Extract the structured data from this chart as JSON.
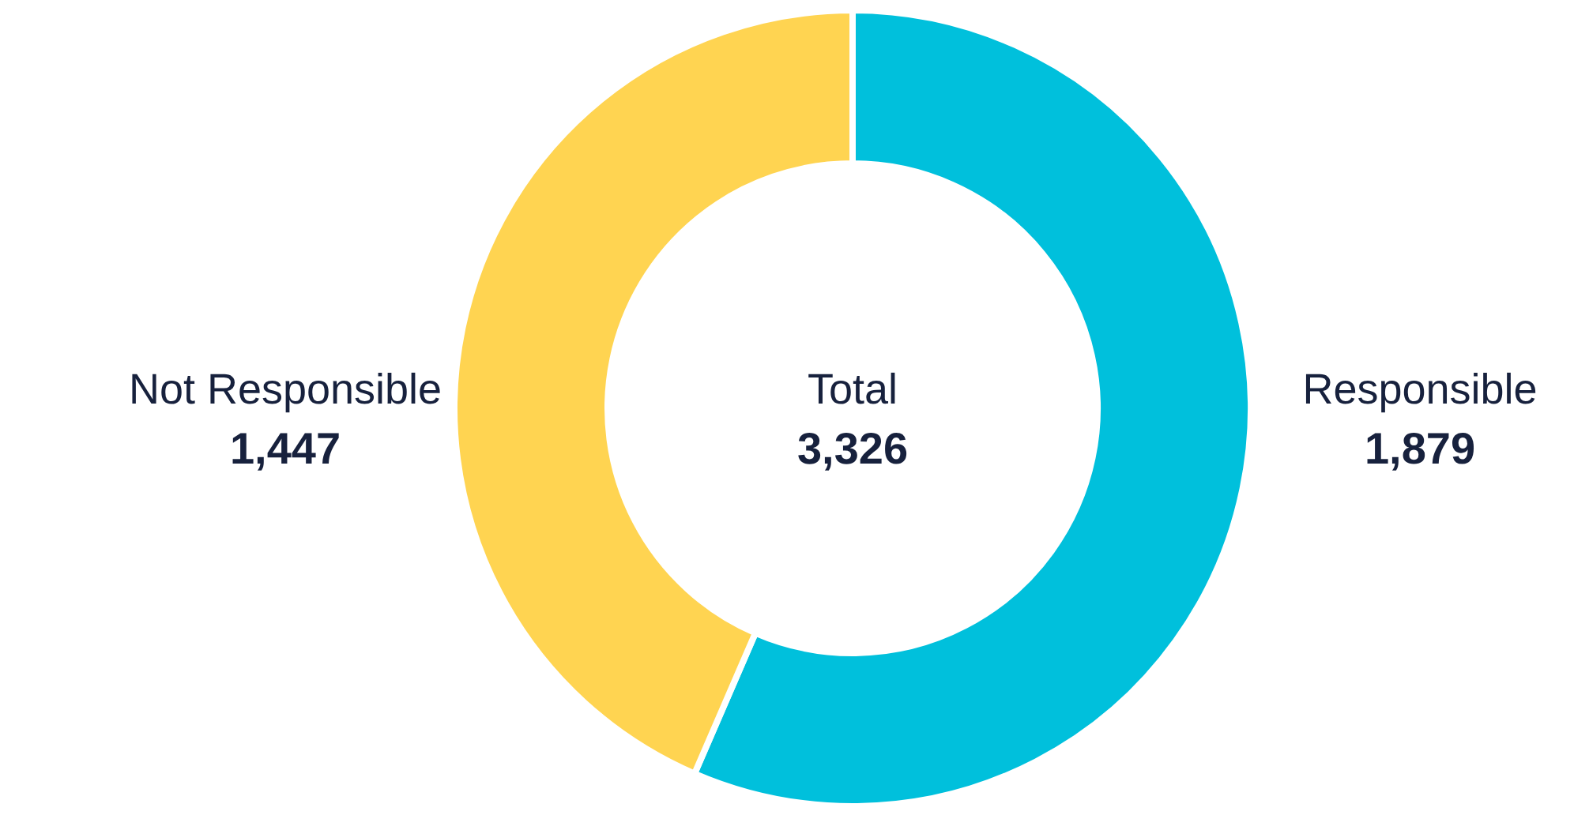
{
  "chart_data": {
    "type": "donut",
    "categories": [
      "Responsible",
      "Not Responsible"
    ],
    "values": [
      1879,
      1447
    ],
    "colors": [
      "#00c0dc",
      "#ffd451"
    ],
    "value_labels": [
      "1,879",
      "1,447"
    ],
    "annotations": [
      "Total",
      "3,326"
    ]
  }
}
